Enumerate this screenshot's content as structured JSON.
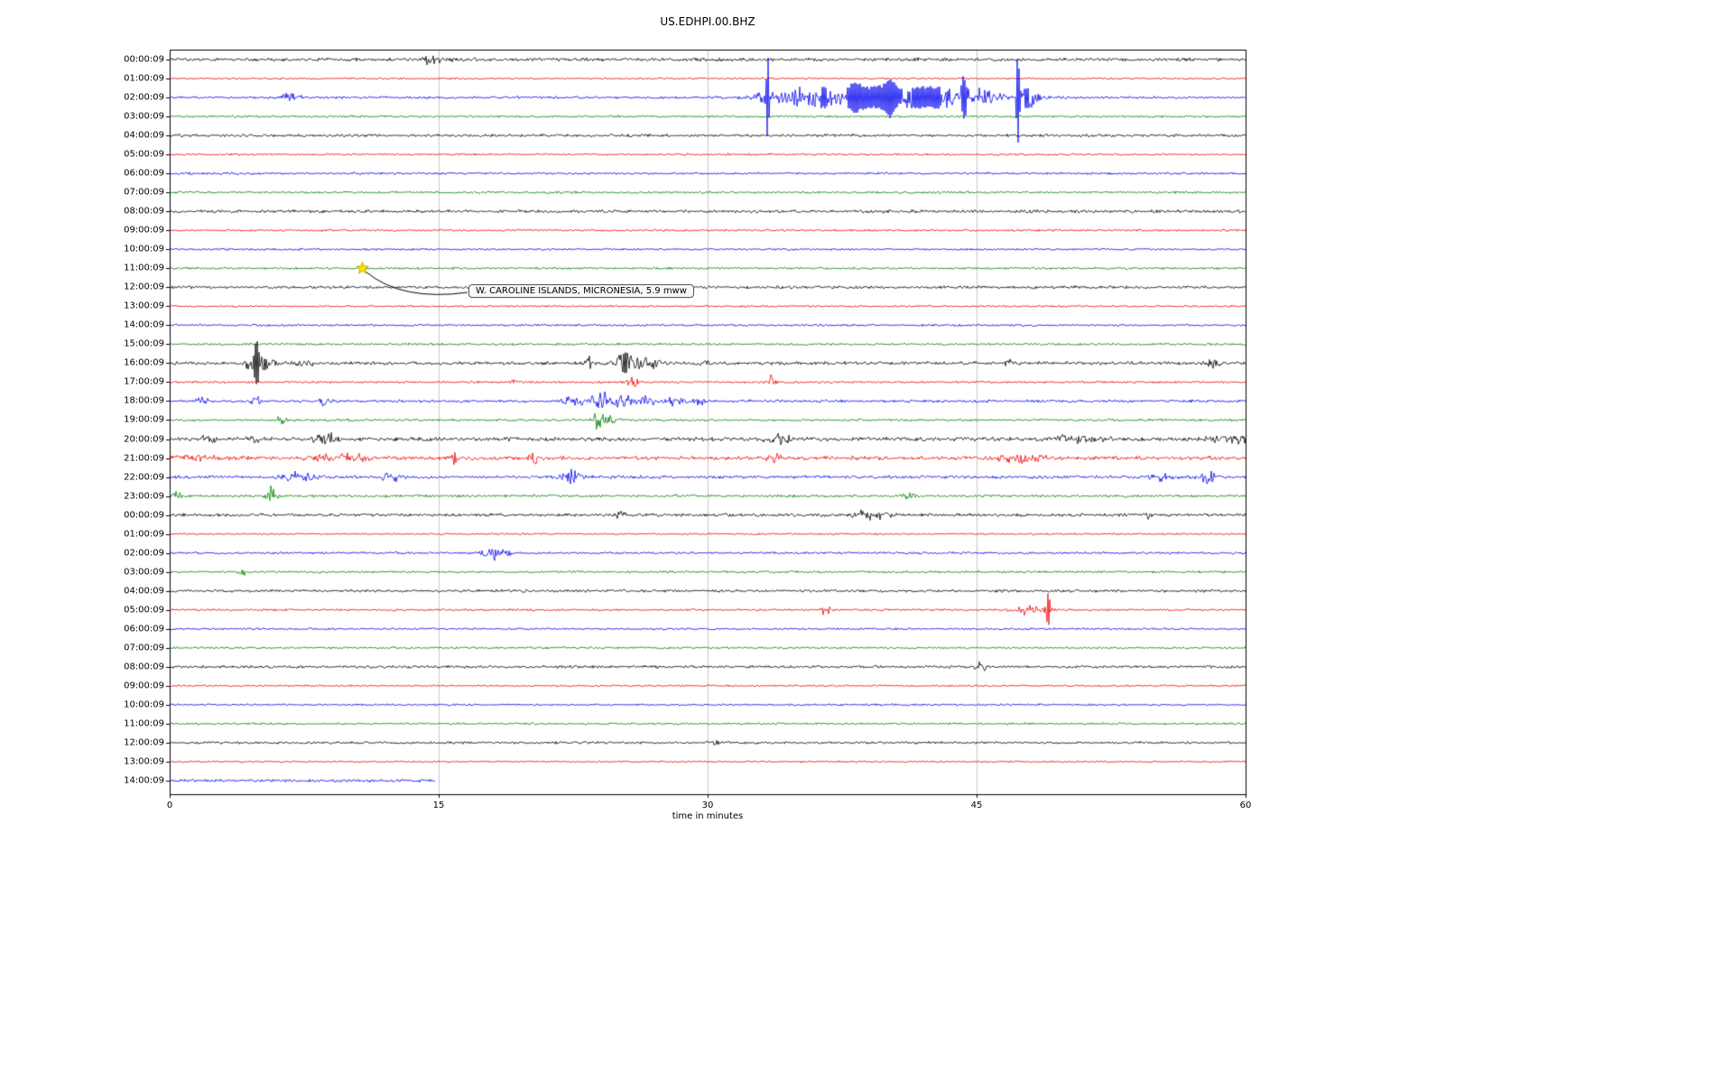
{
  "title": "US.EDHPI.00.BHZ",
  "xlabel": "time in minutes",
  "annotation": {
    "text": "W. CAROLINE ISLANDS, MICRONESIA, 5.9 mww",
    "row_index": 11,
    "minute": 10.75,
    "marker": "star",
    "marker_color": "#ffe000"
  },
  "colors": {
    "grid": "#c8c8c8",
    "axes": "#000000",
    "background": "#ffffff"
  },
  "chart_data": {
    "type": "line",
    "subtype": "seismogram-dayplot",
    "title": "US.EDHPI.00.BHZ",
    "xlabel": "time in minutes",
    "xlim": [
      0,
      60
    ],
    "x_ticks": [
      0,
      15,
      30,
      45,
      60
    ],
    "grid": "vertical",
    "color_cycle": [
      "#000000",
      "#ee0000",
      "#0000ee",
      "#008000"
    ],
    "rows": [
      {
        "label": "00:00:09",
        "noise": 2.2,
        "events": [
          [
            14.7,
            7,
            0.35
          ],
          [
            14.95,
            4,
            0.6
          ]
        ]
      },
      {
        "label": "01:00:09",
        "noise": 1.2,
        "events": []
      },
      {
        "label": "02:00:09",
        "noise": 1.6,
        "events": [
          [
            6.7,
            4,
            0.6
          ],
          [
            33.2,
            9,
            0.5
          ],
          [
            33.35,
            40,
            0.07
          ],
          [
            34.8,
            10,
            0.9
          ],
          [
            36.5,
            9,
            0.8
          ],
          [
            38.2,
            12,
            0.6
          ],
          [
            39.5,
            8,
            0.8
          ],
          [
            40.2,
            14,
            0.3
          ],
          [
            41.5,
            7,
            1.2
          ],
          [
            43.0,
            7,
            1.0
          ],
          [
            44.3,
            20,
            0.15
          ],
          [
            45.3,
            9,
            1.0
          ],
          [
            47.3,
            48,
            0.09
          ],
          [
            47.8,
            12,
            0.7
          ],
          [
            40,
            5,
            5
          ]
        ]
      },
      {
        "label": "03:00:09",
        "noise": 1.4,
        "events": []
      },
      {
        "label": "04:00:09",
        "noise": 1.8,
        "events": []
      },
      {
        "label": "05:00:09",
        "noise": 1.3,
        "events": []
      },
      {
        "label": "06:00:09",
        "noise": 1.5,
        "events": []
      },
      {
        "label": "07:00:09",
        "noise": 1.5,
        "events": []
      },
      {
        "label": "08:00:09",
        "noise": 2.0,
        "events": []
      },
      {
        "label": "09:00:09",
        "noise": 1.4,
        "events": []
      },
      {
        "label": "10:00:09",
        "noise": 1.3,
        "events": []
      },
      {
        "label": "11:00:09",
        "noise": 1.5,
        "events": [
          [
            10.75,
            2.5,
            0.15
          ]
        ]
      },
      {
        "label": "12:00:09",
        "noise": 1.8,
        "events": []
      },
      {
        "label": "13:00:09",
        "noise": 1.3,
        "events": []
      },
      {
        "label": "14:00:09",
        "noise": 1.4,
        "events": []
      },
      {
        "label": "15:00:09",
        "noise": 1.5,
        "events": []
      },
      {
        "label": "16:00:09",
        "noise": 2.2,
        "events": [
          [
            4.45,
            8,
            0.35
          ],
          [
            4.85,
            24,
            0.12
          ],
          [
            5.3,
            10,
            0.5
          ],
          [
            7.6,
            6,
            0.4
          ],
          [
            23.3,
            7,
            0.3
          ],
          [
            25.4,
            13,
            0.5
          ],
          [
            26.3,
            9,
            0.3
          ],
          [
            27.0,
            6,
            0.3
          ],
          [
            29.8,
            5,
            0.25
          ],
          [
            46.9,
            5,
            0.3
          ],
          [
            58.2,
            4,
            0.4
          ]
        ]
      },
      {
        "label": "17:00:09",
        "noise": 1.4,
        "events": [
          [
            19.2,
            6,
            0.2
          ],
          [
            25.8,
            7,
            0.4
          ],
          [
            33.6,
            9,
            0.2
          ]
        ]
      },
      {
        "label": "18:00:09",
        "noise": 1.8,
        "events": [
          [
            1.7,
            6,
            0.4
          ],
          [
            4.8,
            5,
            0.3
          ],
          [
            8.6,
            5,
            0.3
          ],
          [
            22.5,
            6,
            0.5
          ],
          [
            24.0,
            12,
            0.6
          ],
          [
            25.3,
            9,
            0.5
          ],
          [
            26.6,
            6,
            0.5
          ],
          [
            28.2,
            7,
            0.4
          ],
          [
            29.5,
            5,
            0.3
          ]
        ]
      },
      {
        "label": "19:00:09",
        "noise": 1.6,
        "events": [
          [
            6.2,
            7,
            0.25
          ],
          [
            23.9,
            10,
            0.3
          ],
          [
            24.6,
            5,
            0.4
          ]
        ]
      },
      {
        "label": "20:00:09",
        "noise": 2.6,
        "events": [
          [
            2.1,
            4,
            0.5
          ],
          [
            4.7,
            4,
            0.4
          ],
          [
            8.5,
            8,
            0.4
          ],
          [
            9.2,
            6,
            0.25
          ],
          [
            33.9,
            6,
            0.7
          ],
          [
            50.6,
            4,
            1.5
          ],
          [
            59.2,
            5,
            1.0
          ]
        ]
      },
      {
        "label": "21:00:09",
        "noise": 2.4,
        "events": [
          [
            1.0,
            4,
            1.2
          ],
          [
            9.8,
            5,
            1.6
          ],
          [
            15.8,
            7,
            0.3
          ],
          [
            20.3,
            9,
            0.2
          ],
          [
            33.6,
            5,
            0.4
          ],
          [
            47.5,
            5,
            1.5
          ]
        ]
      },
      {
        "label": "22:00:09",
        "noise": 2.0,
        "events": [
          [
            7.2,
            6,
            1.0
          ],
          [
            12.3,
            8,
            0.4
          ],
          [
            22.3,
            8,
            0.6
          ],
          [
            55.3,
            5,
            0.6
          ],
          [
            57.8,
            8,
            0.5
          ]
        ]
      },
      {
        "label": "23:00:09",
        "noise": 1.8,
        "events": [
          [
            0.4,
            4,
            0.3
          ],
          [
            5.65,
            11,
            0.3
          ],
          [
            41.2,
            5,
            0.25
          ]
        ]
      },
      {
        "label": "00:00:09",
        "noise": 2.0,
        "events": [
          [
            25.1,
            6,
            0.25
          ],
          [
            38.9,
            7,
            0.7
          ],
          [
            39.9,
            5,
            0.3
          ],
          [
            54.6,
            4,
            0.25
          ]
        ]
      },
      {
        "label": "01:00:09",
        "noise": 1.2,
        "events": []
      },
      {
        "label": "02:00:09",
        "noise": 1.5,
        "events": [
          [
            18.2,
            8,
            0.7
          ]
        ]
      },
      {
        "label": "03:00:09",
        "noise": 1.5,
        "events": [
          [
            4.0,
            6,
            0.25
          ]
        ]
      },
      {
        "label": "04:00:09",
        "noise": 1.8,
        "events": []
      },
      {
        "label": "05:00:09",
        "noise": 1.4,
        "events": [
          [
            36.6,
            6,
            0.3
          ],
          [
            48.2,
            8,
            0.9
          ],
          [
            49.0,
            17,
            0.12
          ]
        ]
      },
      {
        "label": "06:00:09",
        "noise": 1.3,
        "events": []
      },
      {
        "label": "07:00:09",
        "noise": 1.4,
        "events": []
      },
      {
        "label": "08:00:09",
        "noise": 1.8,
        "events": [
          [
            45.2,
            7,
            0.35
          ]
        ]
      },
      {
        "label": "09:00:09",
        "noise": 1.2,
        "events": []
      },
      {
        "label": "10:00:09",
        "noise": 1.3,
        "events": []
      },
      {
        "label": "11:00:09",
        "noise": 1.4,
        "events": []
      },
      {
        "label": "12:00:09",
        "noise": 1.6,
        "events": [
          [
            30.4,
            3,
            0.3
          ]
        ]
      },
      {
        "label": "13:00:09",
        "noise": 1.2,
        "events": []
      },
      {
        "label": "14:00:09",
        "noise": 1.8,
        "events": [],
        "end": 14.8
      }
    ]
  }
}
